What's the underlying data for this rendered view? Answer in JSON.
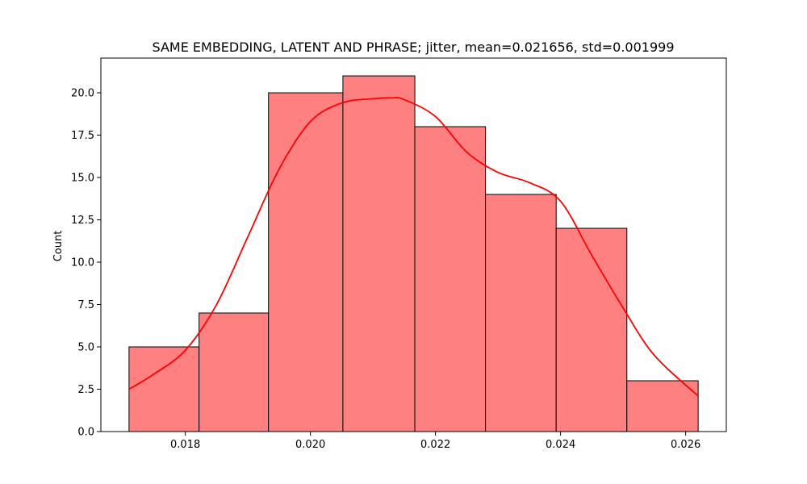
{
  "chart_data": {
    "type": "histogram",
    "title": "SAME EMBEDDING, LATENT AND PHRASE; jitter, mean=0.021656, std=0.001999",
    "xlabel": "",
    "ylabel": "Count",
    "bin_edges": [
      0.0171,
      0.01822,
      0.01933,
      0.02052,
      0.02167,
      0.0228,
      0.02393,
      0.02506,
      0.0262
    ],
    "counts": [
      5,
      7,
      20,
      21,
      18,
      14,
      12,
      3
    ],
    "x_ticks": [
      0.018,
      0.02,
      0.022,
      0.024,
      0.026
    ],
    "x_tick_labels": [
      "0.018",
      "0.020",
      "0.022",
      "0.024",
      "0.026"
    ],
    "y_ticks": [
      0,
      2.5,
      5,
      7.5,
      10,
      12.5,
      15,
      17.5,
      20
    ],
    "y_tick_labels": [
      "0.0",
      "2.5",
      "5.0",
      "7.5",
      "10.0",
      "12.5",
      "15.0",
      "17.5",
      "20.0"
    ],
    "xlim": [
      0.01665,
      0.02665
    ],
    "ylim": [
      0,
      22.05
    ],
    "kde": {
      "x": [
        0.0171,
        0.0175,
        0.018,
        0.0185,
        0.019,
        0.0195,
        0.02,
        0.0205,
        0.021,
        0.0213,
        0.0215,
        0.022,
        0.0225,
        0.023,
        0.0235,
        0.024,
        0.0245,
        0.025,
        0.0255,
        0.0262
      ],
      "y": [
        2.5,
        3.4,
        4.8,
        7.5,
        11.5,
        15.5,
        18.3,
        19.4,
        19.65,
        19.7,
        19.6,
        18.6,
        16.5,
        15.3,
        14.7,
        13.6,
        10.4,
        7.3,
        4.5,
        2.1
      ]
    },
    "grid": false,
    "colors": {
      "bar_fill": "#ff8080",
      "bar_edge": "#000000",
      "kde_line": "#ff0000"
    }
  }
}
